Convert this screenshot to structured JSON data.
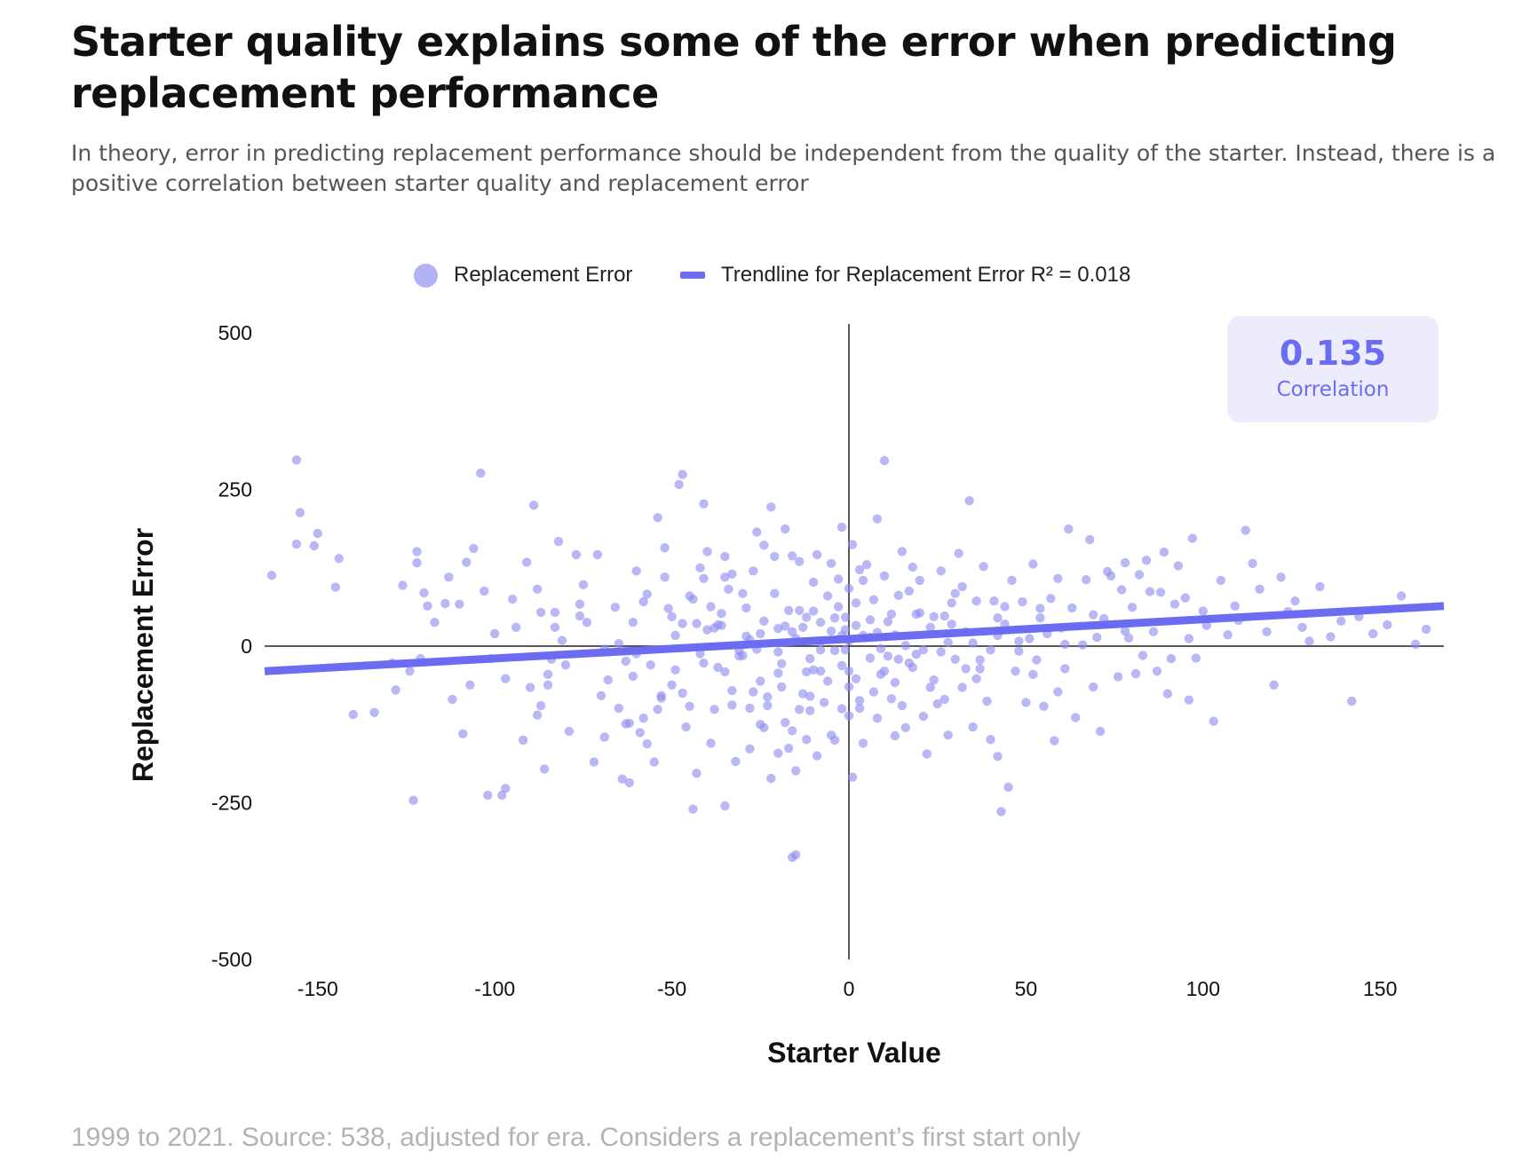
{
  "title": "Starter quality explains some of the error when predicting replacement performance",
  "subtitle": "In theory, error in predicting replacement performance should be independent from the quality of the starter. Instead, there is a positive correlation between starter quality and replacement error",
  "legend": {
    "scatter_label": "Replacement Error",
    "trend_label": "Trendline for Replacement Error R² = 0.018"
  },
  "correlation": {
    "value": "0.135",
    "label": "Correlation"
  },
  "source": "1999 to 2021. Source: 538, adjusted for era. Considers a replacement’s first start only",
  "colors": {
    "point": "#8e8cf0",
    "trend": "#6b6cf2",
    "axis": "#222222"
  },
  "chart_data": {
    "type": "scatter",
    "xlabel": "Starter Value",
    "ylabel": "Replacement Error",
    "xlim": [
      -165,
      168
    ],
    "ylim": [
      -500,
      500
    ],
    "xticks": [
      -150,
      -100,
      -50,
      0,
      50,
      100,
      150
    ],
    "yticks": [
      500,
      250,
      0,
      -250,
      -500
    ],
    "trendline": {
      "x": [
        -165,
        168
      ],
      "y": [
        -40,
        64
      ]
    },
    "points": [
      [
        -163,
        113
      ],
      [
        -156,
        297
      ],
      [
        -155,
        213
      ],
      [
        -156,
        163
      ],
      [
        -151,
        160
      ],
      [
        -145,
        94
      ],
      [
        -140,
        -109
      ],
      [
        -134,
        -106
      ],
      [
        -126,
        97
      ],
      [
        -124,
        -40
      ],
      [
        -123,
        -246
      ],
      [
        -122,
        151
      ],
      [
        -122,
        133
      ],
      [
        -120,
        85
      ],
      [
        -119,
        64
      ],
      [
        -114,
        68
      ],
      [
        -110,
        67
      ],
      [
        -108,
        134
      ],
      [
        -107,
        -62
      ],
      [
        -104,
        276
      ],
      [
        -103,
        88
      ],
      [
        -102,
        -238
      ],
      [
        -98,
        -238
      ],
      [
        -97,
        -227
      ],
      [
        -91,
        134
      ],
      [
        -89,
        225
      ],
      [
        -88,
        91
      ],
      [
        -87,
        -95
      ],
      [
        -87,
        54
      ],
      [
        -86,
        -196
      ],
      [
        -85,
        -62
      ],
      [
        -85,
        -45
      ],
      [
        -84,
        -21
      ],
      [
        -83,
        30
      ],
      [
        -83,
        54
      ],
      [
        -82,
        167
      ],
      [
        -79,
        -136
      ],
      [
        -77,
        146
      ],
      [
        -76,
        67
      ],
      [
        -76,
        48
      ],
      [
        -71,
        146
      ],
      [
        -70,
        -79
      ],
      [
        -69,
        -5
      ],
      [
        -68,
        -54
      ],
      [
        -65,
        -99
      ],
      [
        -64,
        -212
      ],
      [
        -63,
        -124
      ],
      [
        -63,
        -24
      ],
      [
        -62,
        -123
      ],
      [
        -62,
        -218
      ],
      [
        -61,
        38
      ],
      [
        -60,
        -12
      ],
      [
        -59,
        -138
      ],
      [
        -58,
        71
      ],
      [
        -58,
        -115
      ],
      [
        -56,
        -30
      ],
      [
        -55,
        -185
      ],
      [
        -54,
        205
      ],
      [
        -54,
        -101
      ],
      [
        -53,
        -79
      ],
      [
        -52,
        157
      ],
      [
        -52,
        110
      ],
      [
        -51,
        60
      ],
      [
        -50,
        47
      ],
      [
        -50,
        -62
      ],
      [
        -49,
        17
      ],
      [
        -48,
        258
      ],
      [
        -47,
        274
      ],
      [
        -47,
        36
      ],
      [
        -46,
        -129
      ],
      [
        -45,
        -96
      ],
      [
        -44,
        -260
      ],
      [
        -43,
        -203
      ],
      [
        -43,
        36
      ],
      [
        -42,
        125
      ],
      [
        -41,
        227
      ],
      [
        -41,
        108
      ],
      [
        -40,
        151
      ],
      [
        -40,
        26
      ],
      [
        -39,
        -155
      ],
      [
        -38,
        29
      ],
      [
        -38,
        -101
      ],
      [
        -37,
        34
      ],
      [
        -37,
        -34
      ],
      [
        -36,
        33
      ],
      [
        -35,
        143
      ],
      [
        -35,
        -255
      ],
      [
        -35,
        110
      ],
      [
        -35,
        -41
      ],
      [
        -34,
        91
      ],
      [
        -33,
        -94
      ],
      [
        -33,
        115
      ],
      [
        -32,
        -184
      ],
      [
        -31,
        -7
      ],
      [
        -30,
        84
      ],
      [
        -30,
        -15
      ],
      [
        -29,
        16
      ],
      [
        -28,
        -99
      ],
      [
        -28,
        -164
      ],
      [
        -28,
        10
      ],
      [
        -27,
        -73
      ],
      [
        -26,
        -5
      ],
      [
        -26,
        182
      ],
      [
        -25,
        -56
      ],
      [
        -25,
        20
      ],
      [
        -24,
        40
      ],
      [
        -24,
        161
      ],
      [
        -23,
        -95
      ],
      [
        -23,
        -81
      ],
      [
        -22,
        -211
      ],
      [
        -22,
        222
      ],
      [
        -21,
        143
      ],
      [
        -20,
        -171
      ],
      [
        -20,
        -9
      ],
      [
        -20,
        28
      ],
      [
        -19,
        -65
      ],
      [
        -19,
        -28
      ],
      [
        -18,
        32
      ],
      [
        -18,
        187
      ],
      [
        -18,
        -122
      ],
      [
        -17,
        57
      ],
      [
        -17,
        -163
      ],
      [
        -16,
        -135
      ],
      [
        -16,
        -337
      ],
      [
        -16,
        144
      ],
      [
        -15,
        -199
      ],
      [
        -15,
        -333
      ],
      [
        -14,
        135
      ],
      [
        -14,
        -101
      ],
      [
        -14,
        57
      ],
      [
        -13,
        30
      ],
      [
        -12,
        46
      ],
      [
        -12,
        -149
      ],
      [
        -12,
        -41
      ],
      [
        -11,
        -80
      ],
      [
        -11,
        -103
      ],
      [
        -10,
        102
      ],
      [
        -10,
        56
      ],
      [
        -10,
        -38
      ],
      [
        -9,
        -175
      ],
      [
        -9,
        146
      ],
      [
        -8,
        7
      ],
      [
        -8,
        -40
      ],
      [
        -8,
        -6
      ],
      [
        -7,
        -90
      ],
      [
        -6,
        -56
      ],
      [
        -5,
        24
      ],
      [
        -5,
        132
      ],
      [
        -4,
        -150
      ],
      [
        -4,
        -7
      ],
      [
        -4,
        45
      ],
      [
        -3,
        107
      ],
      [
        -3,
        63
      ],
      [
        -2,
        -31
      ],
      [
        -2,
        -100
      ],
      [
        -2,
        190
      ],
      [
        -1,
        46
      ],
      [
        -1,
        -6
      ],
      [
        -1,
        26
      ],
      [
        0,
        -111
      ],
      [
        0,
        8
      ],
      [
        0,
        -65
      ],
      [
        0,
        92
      ],
      [
        0,
        -40
      ],
      [
        1,
        162
      ],
      [
        1,
        -209
      ],
      [
        2,
        -52
      ],
      [
        2,
        33
      ],
      [
        3,
        -87
      ],
      [
        3,
        122
      ],
      [
        4,
        105
      ],
      [
        4,
        17
      ],
      [
        4,
        -155
      ],
      [
        5,
        130
      ],
      [
        6,
        -19
      ],
      [
        6,
        14
      ],
      [
        7,
        -73
      ],
      [
        7,
        74
      ],
      [
        8,
        203
      ],
      [
        8,
        22
      ],
      [
        9,
        -4
      ],
      [
        9,
        -45
      ],
      [
        10,
        112
      ],
      [
        10,
        296
      ],
      [
        11,
        -16
      ],
      [
        11,
        39
      ],
      [
        12,
        -84
      ],
      [
        12,
        51
      ],
      [
        13,
        -143
      ],
      [
        13,
        -58
      ],
      [
        14,
        81
      ],
      [
        14,
        -21
      ],
      [
        15,
        151
      ],
      [
        16,
        1
      ],
      [
        16,
        -130
      ],
      [
        17,
        -27
      ],
      [
        18,
        -34
      ],
      [
        18,
        126
      ],
      [
        19,
        51
      ],
      [
        20,
        105
      ],
      [
        20,
        53
      ],
      [
        21,
        -112
      ],
      [
        21,
        -6
      ],
      [
        22,
        -172
      ],
      [
        23,
        -66
      ],
      [
        24,
        47
      ],
      [
        25,
        -92
      ],
      [
        26,
        120
      ],
      [
        26,
        -9
      ],
      [
        27,
        48
      ],
      [
        28,
        -142
      ],
      [
        28,
        6
      ],
      [
        29,
        35
      ],
      [
        30,
        -21
      ],
      [
        30,
        84
      ],
      [
        31,
        148
      ],
      [
        32,
        -66
      ],
      [
        33,
        23
      ],
      [
        33,
        -36
      ],
      [
        34,
        232
      ],
      [
        35,
        -129
      ],
      [
        35,
        5
      ],
      [
        36,
        72
      ],
      [
        37,
        -36
      ],
      [
        38,
        127
      ],
      [
        39,
        -88
      ],
      [
        40,
        -6
      ],
      [
        40,
        -149
      ],
      [
        41,
        72
      ],
      [
        42,
        17
      ],
      [
        42,
        -176
      ],
      [
        43,
        -264
      ],
      [
        44,
        63
      ],
      [
        45,
        -225
      ],
      [
        46,
        105
      ],
      [
        47,
        -40
      ],
      [
        48,
        8
      ],
      [
        49,
        71
      ],
      [
        50,
        -90
      ],
      [
        51,
        12
      ],
      [
        52,
        131
      ],
      [
        53,
        -22
      ],
      [
        54,
        45
      ],
      [
        55,
        -96
      ],
      [
        56,
        20
      ],
      [
        57,
        76
      ],
      [
        58,
        -151
      ],
      [
        59,
        108
      ],
      [
        60,
        29
      ],
      [
        61,
        -36
      ],
      [
        62,
        187
      ],
      [
        63,
        61
      ],
      [
        64,
        -114
      ],
      [
        66,
        2
      ],
      [
        67,
        106
      ],
      [
        68,
        170
      ],
      [
        69,
        50
      ],
      [
        70,
        14
      ],
      [
        71,
        -136
      ],
      [
        72,
        44
      ],
      [
        73,
        119
      ],
      [
        74,
        112
      ],
      [
        76,
        -49
      ],
      [
        77,
        90
      ],
      [
        78,
        133
      ],
      [
        79,
        13
      ],
      [
        80,
        62
      ],
      [
        81,
        -44
      ],
      [
        82,
        114
      ],
      [
        83,
        -15
      ],
      [
        84,
        137
      ],
      [
        85,
        87
      ],
      [
        86,
        23
      ],
      [
        88,
        86
      ],
      [
        89,
        150
      ],
      [
        90,
        -76
      ],
      [
        91,
        -20
      ],
      [
        92,
        67
      ],
      [
        93,
        128
      ],
      [
        95,
        77
      ],
      [
        96,
        12
      ],
      [
        97,
        172
      ],
      [
        98,
        -19
      ],
      [
        100,
        56
      ],
      [
        101,
        33
      ],
      [
        103,
        -120
      ],
      [
        105,
        105
      ],
      [
        107,
        18
      ],
      [
        109,
        64
      ],
      [
        110,
        41
      ],
      [
        112,
        185
      ],
      [
        114,
        132
      ],
      [
        116,
        91
      ],
      [
        118,
        23
      ],
      [
        120,
        -62
      ],
      [
        122,
        110
      ],
      [
        124,
        55
      ],
      [
        126,
        72
      ],
      [
        128,
        30
      ],
      [
        130,
        8
      ],
      [
        133,
        95
      ],
      [
        136,
        15
      ],
      [
        139,
        40
      ],
      [
        142,
        -88
      ],
      [
        144,
        47
      ],
      [
        148,
        20
      ],
      [
        152,
        34
      ],
      [
        156,
        80
      ],
      [
        160,
        3
      ],
      [
        163,
        27
      ],
      [
        -100,
        20
      ],
      [
        -95,
        75
      ],
      [
        -92,
        -150
      ],
      [
        -88,
        -110
      ],
      [
        -80,
        -30
      ],
      [
        -75,
        98
      ],
      [
        -72,
        -185
      ],
      [
        -66,
        62
      ],
      [
        -60,
        120
      ],
      [
        -57,
        -156
      ],
      [
        -45,
        80
      ],
      [
        -42,
        -12
      ],
      [
        -39,
        63
      ],
      [
        -33,
        -71
      ],
      [
        -27,
        120
      ],
      [
        -24,
        -130
      ],
      [
        -21,
        84
      ],
      [
        -15,
        12
      ],
      [
        -11,
        -20
      ],
      [
        -6,
        80
      ],
      [
        3,
        -99
      ],
      [
        8,
        -115
      ],
      [
        13,
        18
      ],
      [
        17,
        88
      ],
      [
        24,
        -54
      ],
      [
        29,
        69
      ],
      [
        36,
        -52
      ],
      [
        44,
        35
      ],
      [
        52,
        -45
      ],
      [
        61,
        3
      ],
      [
        69,
        -65
      ],
      [
        78,
        24
      ],
      [
        87,
        -40
      ],
      [
        96,
        -86
      ],
      [
        -129,
        -27
      ],
      [
        -117,
        38
      ],
      [
        -112,
        -85
      ],
      [
        -106,
        156
      ],
      [
        -97,
        -52
      ],
      [
        -90,
        -66
      ],
      [
        -81,
        9
      ],
      [
        -74,
        38
      ],
      [
        -69,
        -145
      ],
      [
        -65,
        4
      ],
      [
        -61,
        -48
      ],
      [
        -57,
        83
      ],
      [
        -53,
        -83
      ],
      [
        -49,
        -38
      ],
      [
        -47,
        -75
      ],
      [
        -44,
        75
      ],
      [
        -41,
        -27
      ],
      [
        -36,
        52
      ],
      [
        -31,
        -16
      ],
      [
        -29,
        61
      ],
      [
        -25,
        -125
      ],
      [
        -20,
        -43
      ],
      [
        -16,
        23
      ],
      [
        -13,
        -76
      ],
      [
        -8,
        38
      ],
      [
        -5,
        -142
      ],
      [
        -2,
        17
      ],
      [
        2,
        69
      ],
      [
        6,
        42
      ],
      [
        10,
        -40
      ],
      [
        15,
        -95
      ],
      [
        19,
        -13
      ],
      [
        23,
        30
      ],
      [
        27,
        -85
      ],
      [
        32,
        95
      ],
      [
        37,
        -22
      ],
      [
        42,
        45
      ],
      [
        48,
        -8
      ],
      [
        54,
        60
      ],
      [
        59,
        -73
      ],
      [
        -150,
        180
      ],
      [
        -144,
        140
      ],
      [
        -128,
        -70
      ],
      [
        -121,
        -20
      ],
      [
        -113,
        110
      ],
      [
        -109,
        -140
      ],
      [
        -101,
        -20
      ],
      [
        -94,
        30
      ]
    ]
  }
}
